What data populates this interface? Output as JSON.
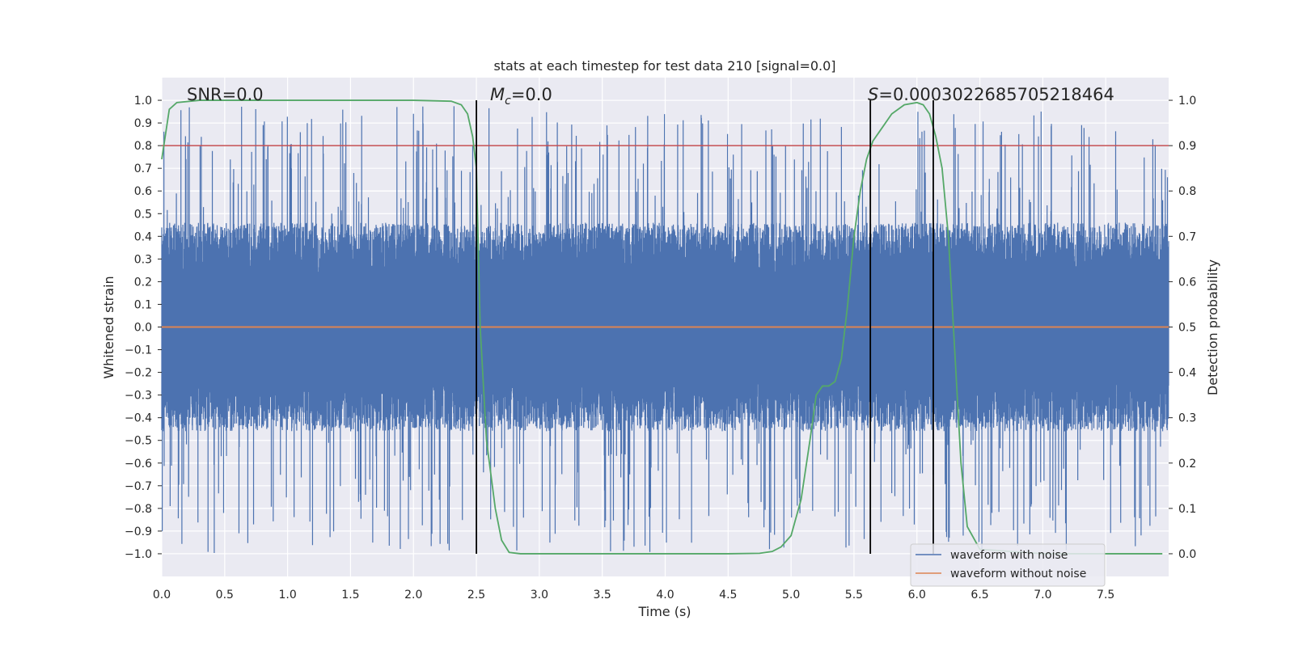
{
  "chart_data": {
    "type": "line",
    "title": "stats at each timestep for test data 210 [signal=0.0]",
    "xlabel": "Time (s)",
    "ylabel": "Whitened strain",
    "y2label": "Detection probability",
    "xlim": [
      0.0,
      8.0
    ],
    "ylim": [
      -1.1,
      1.1
    ],
    "y2lim": [
      -0.05,
      1.05
    ],
    "xticks": [
      0.0,
      0.5,
      1.0,
      1.5,
      2.0,
      2.5,
      3.0,
      3.5,
      4.0,
      4.5,
      5.0,
      5.5,
      6.0,
      6.5,
      7.0,
      7.5
    ],
    "xtick_labels": [
      "0.0",
      "0.5",
      "1.0",
      "1.5",
      "2.0",
      "2.5",
      "3.0",
      "3.5",
      "4.0",
      "4.5",
      "5.0",
      "5.5",
      "6.0",
      "6.5",
      "7.0",
      "7.5"
    ],
    "yticks": [
      -1.0,
      -0.9,
      -0.8,
      -0.7,
      -0.6,
      -0.5,
      -0.4,
      -0.3,
      -0.2,
      -0.1,
      0.0,
      0.1,
      0.2,
      0.3,
      0.4,
      0.5,
      0.6,
      0.7,
      0.8,
      0.9,
      1.0
    ],
    "ytick_labels": [
      "−1.0",
      "−0.9",
      "−0.8",
      "−0.7",
      "−0.6",
      "−0.5",
      "−0.4",
      "−0.3",
      "−0.2",
      "−0.1",
      "0.0",
      "0.1",
      "0.2",
      "0.3",
      "0.4",
      "0.5",
      "0.6",
      "0.7",
      "0.8",
      "0.9",
      "1.0"
    ],
    "y2ticks": [
      0.0,
      0.1,
      0.2,
      0.3,
      0.4,
      0.5,
      0.6,
      0.7,
      0.8,
      0.9,
      1.0
    ],
    "y2tick_labels": [
      "0.0",
      "0.1",
      "0.2",
      "0.3",
      "0.4",
      "0.5",
      "0.6",
      "0.7",
      "0.8",
      "0.9",
      "1.0"
    ],
    "grid": true,
    "legend_position": "bottom-right",
    "annotations": {
      "snr": "SNR=0.0",
      "mc_symbol": "M",
      "mc_sub": "c",
      "mc_value": "=0.0",
      "s_symbol": "S",
      "s_value": "=0.0003022685705218464"
    },
    "threshold": {
      "y2": 0.9,
      "color": "#c44e52"
    },
    "vlines": [
      2.5,
      5.63,
      6.13
    ],
    "series": [
      {
        "name": "waveform with noise",
        "color": "#4c72b0",
        "axis": "left",
        "style": "dense-noise",
        "typical_amplitude": 0.4,
        "max": 0.98,
        "min": -1.0
      },
      {
        "name": "waveform without noise",
        "color": "#dd8452",
        "axis": "left",
        "x": [
          0.0,
          8.0
        ],
        "y": [
          0.0,
          0.0
        ]
      },
      {
        "name": "",
        "color": "#55a868",
        "axis": "right",
        "x": [
          0.0,
          0.06,
          0.12,
          0.3,
          1.0,
          2.0,
          2.3,
          2.38,
          2.43,
          2.47,
          2.5,
          2.53,
          2.58,
          2.65,
          2.7,
          2.76,
          2.85,
          3.5,
          4.5,
          4.75,
          4.85,
          4.92,
          5.0,
          5.08,
          5.15,
          5.2,
          5.25,
          5.3,
          5.35,
          5.4,
          5.45,
          5.5,
          5.55,
          5.6,
          5.65,
          5.7,
          5.8,
          5.9,
          6.0,
          6.05,
          6.1,
          6.15,
          6.2,
          6.25,
          6.3,
          6.35,
          6.4,
          6.5,
          7.0,
          7.95
        ],
        "y": [
          0.87,
          0.98,
          0.995,
          1.0,
          1.0,
          1.0,
          0.998,
          0.99,
          0.97,
          0.92,
          0.85,
          0.5,
          0.25,
          0.1,
          0.03,
          0.003,
          0.0,
          0.0,
          0.0,
          0.001,
          0.005,
          0.015,
          0.04,
          0.12,
          0.25,
          0.35,
          0.37,
          0.37,
          0.38,
          0.43,
          0.55,
          0.7,
          0.8,
          0.87,
          0.91,
          0.93,
          0.97,
          0.99,
          0.995,
          0.99,
          0.97,
          0.92,
          0.85,
          0.7,
          0.45,
          0.2,
          0.06,
          0.01,
          0.0,
          0.0
        ]
      }
    ]
  }
}
